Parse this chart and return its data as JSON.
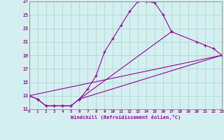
{
  "xlabel": "Windchill (Refroidissement éolien,°C)",
  "ylabel": "",
  "xlim": [
    0,
    23
  ],
  "ylim": [
    11,
    27
  ],
  "xticks": [
    0,
    1,
    2,
    3,
    4,
    5,
    6,
    7,
    8,
    9,
    10,
    11,
    12,
    13,
    14,
    15,
    16,
    17,
    18,
    19,
    20,
    21,
    22,
    23
  ],
  "yticks": [
    11,
    13,
    15,
    17,
    19,
    21,
    23,
    25,
    27
  ],
  "line_color": "#990099",
  "bg_color": "#d4efef",
  "grid_color": "#aed6d6",
  "curves": [
    {
      "x": [
        0,
        1,
        2,
        3,
        4,
        5,
        6,
        7,
        8,
        9,
        10,
        11,
        12,
        13,
        14,
        15,
        16,
        17
      ],
      "y": [
        13,
        12.5,
        11.5,
        11.5,
        11.5,
        11.5,
        12.5,
        14,
        16,
        19.5,
        21.5,
        23.5,
        25.5,
        27,
        27,
        26.8,
        25,
        22.5
      ]
    },
    {
      "x": [
        0,
        1,
        2,
        3,
        4,
        5,
        6,
        17,
        20,
        21,
        22,
        23
      ],
      "y": [
        13,
        12.5,
        11.5,
        11.5,
        11.5,
        11.5,
        12.5,
        22.5,
        21,
        20.5,
        20,
        19
      ]
    },
    {
      "x": [
        0,
        23
      ],
      "y": [
        13,
        19
      ]
    },
    {
      "x": [
        6,
        23
      ],
      "y": [
        12.5,
        19
      ]
    }
  ]
}
